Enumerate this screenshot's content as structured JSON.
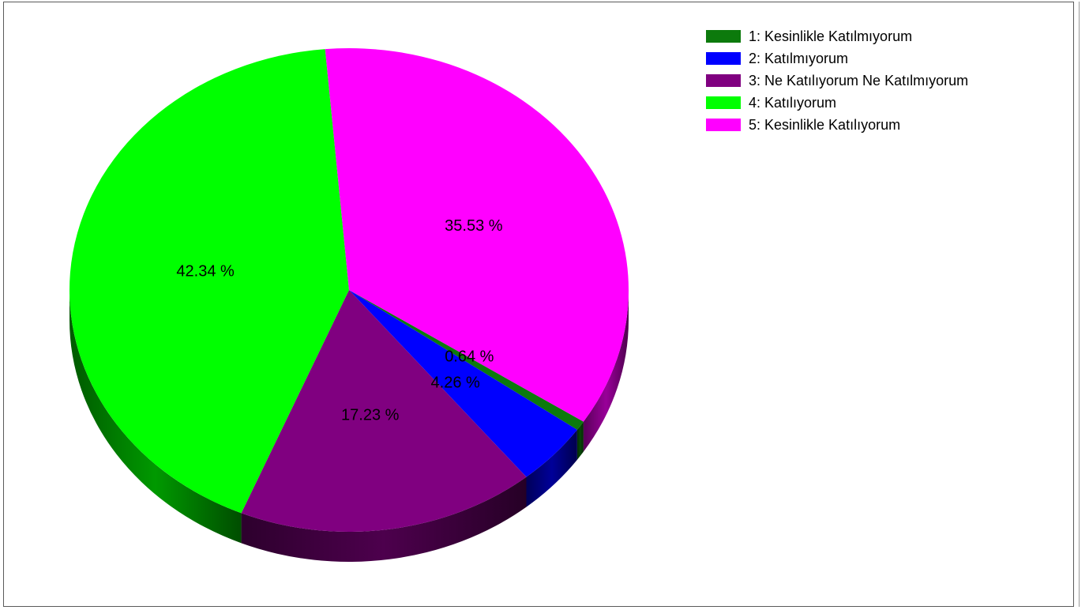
{
  "chart_data": {
    "type": "pie",
    "three_d": true,
    "legend_position": "top-right",
    "title": "",
    "slices": [
      {
        "name": "1: Kesinlikle Katılmıyorum",
        "value": 0.64,
        "label": "0.64 %",
        "color": "#0c7a0c"
      },
      {
        "name": "2: Katılmıyorum",
        "value": 4.26,
        "label": "4.26 %",
        "color": "#0000ff"
      },
      {
        "name": "3: Ne Katılıyorum Ne Katılmıyorum",
        "value": 17.23,
        "label": "17.23 %",
        "color": "#800080"
      },
      {
        "name": "4: Katılıyorum",
        "value": 42.34,
        "label": "42.34 %",
        "color": "#00ff00"
      },
      {
        "name": "5: Kesinlikle Katılıyorum",
        "value": 35.53,
        "label": "35.53 %",
        "color": "#ff00ff"
      }
    ]
  },
  "legend": {
    "items": [
      {
        "label": "1: Kesinlikle Katılmıyorum",
        "color": "#0c7a0c"
      },
      {
        "label": "2: Katılmıyorum",
        "color": "#0000ff"
      },
      {
        "label": "3: Ne Katılıyorum Ne Katılmıyorum",
        "color": "#800080"
      },
      {
        "label": "4: Katılıyorum",
        "color": "#00ff00"
      },
      {
        "label": "5: Kesinlikle Katılıyorum",
        "color": "#ff00ff"
      }
    ]
  }
}
